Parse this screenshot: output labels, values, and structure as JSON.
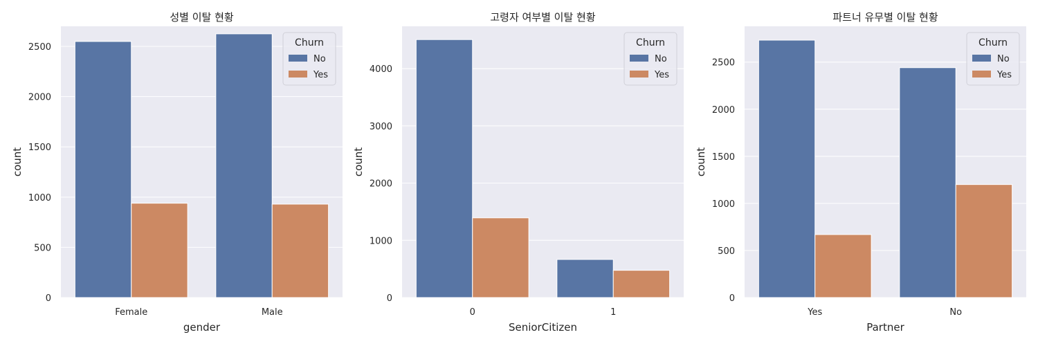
{
  "chart_data": [
    {
      "type": "bar",
      "title": "성별 이탈 현황",
      "xlabel": "gender",
      "ylabel": "count",
      "categories": [
        "Female",
        "Male"
      ],
      "ylim": [
        0,
        2700
      ],
      "yticks": [
        0,
        500,
        1000,
        1500,
        2000,
        2500
      ],
      "grid": true,
      "legend": {
        "title": "Churn",
        "position": "top-right"
      },
      "series": [
        {
          "name": "No",
          "color": "#5875a4",
          "values": [
            2549,
            2625
          ]
        },
        {
          "name": "Yes",
          "color": "#cc8963",
          "values": [
            939,
            930
          ]
        }
      ]
    },
    {
      "type": "bar",
      "title": "고령자 여부별 이탈 현황",
      "xlabel": "SeniorCitizen",
      "ylabel": "count",
      "categories": [
        "0",
        "1"
      ],
      "ylim": [
        0,
        4740
      ],
      "yticks": [
        0,
        1000,
        2000,
        3000,
        4000
      ],
      "grid": true,
      "legend": {
        "title": "Churn",
        "position": "top-right"
      },
      "series": [
        {
          "name": "No",
          "color": "#5875a4",
          "values": [
            4508,
            666
          ]
        },
        {
          "name": "Yes",
          "color": "#cc8963",
          "values": [
            1393,
            476
          ]
        }
      ]
    },
    {
      "type": "bar",
      "title": "파트너 유무별 이탈 현황",
      "xlabel": "Partner",
      "ylabel": "count",
      "categories": [
        "Yes",
        "No"
      ],
      "ylim": [
        0,
        2880
      ],
      "yticks": [
        0,
        500,
        1000,
        1500,
        2000,
        2500
      ],
      "grid": true,
      "legend": {
        "title": "Churn",
        "position": "top-right"
      },
      "series": [
        {
          "name": "No",
          "color": "#5875a4",
          "values": [
            2733,
            2441
          ]
        },
        {
          "name": "Yes",
          "color": "#cc8963",
          "values": [
            669,
            1200
          ]
        }
      ]
    }
  ]
}
